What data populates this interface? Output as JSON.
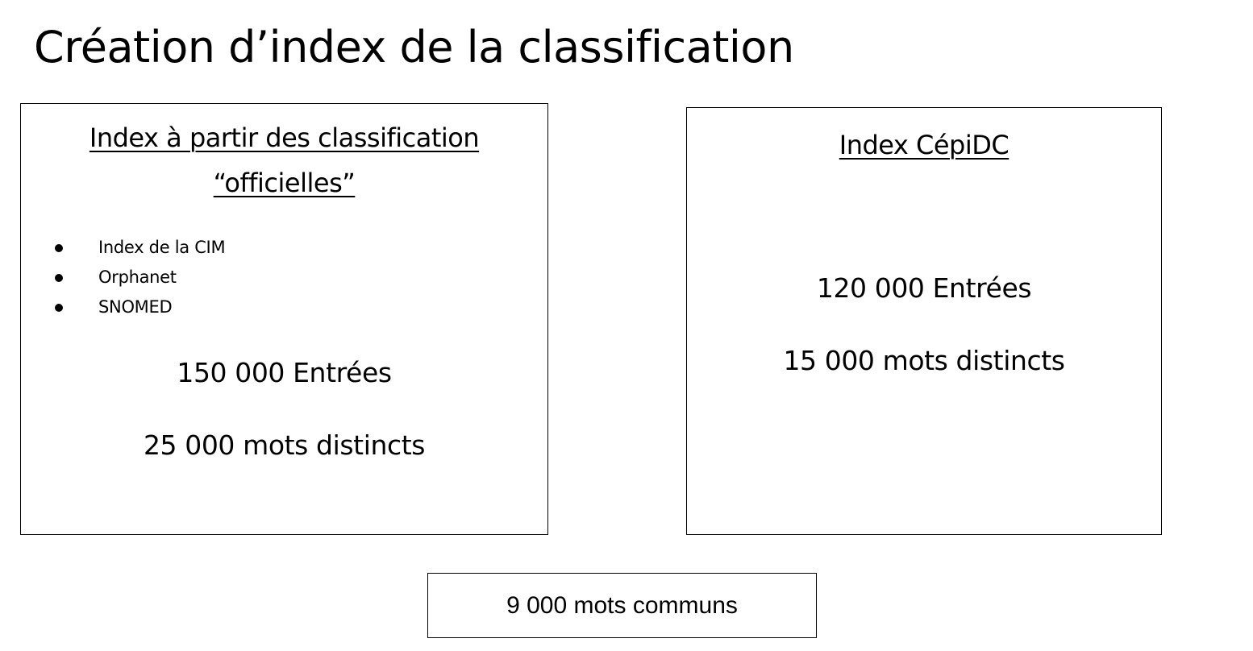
{
  "title": "Création d’index de la classification",
  "left_box": {
    "heading_line1": "Index à partir des classification",
    "heading_line2": "“officielles”",
    "sources": [
      "Index de la CIM",
      "Orphanet",
      "SNOMED"
    ],
    "entries": "150 000 Entrées",
    "distinct_words": "25 000 mots distincts"
  },
  "right_box": {
    "heading": "Index CépiDC",
    "entries": "120 000 Entrées",
    "distinct_words": "15 000 mots distincts"
  },
  "common": {
    "label": "9 000 mots communs"
  }
}
